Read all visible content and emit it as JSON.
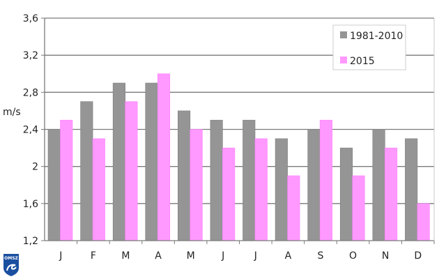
{
  "chart_data": {
    "type": "bar",
    "title": "",
    "xlabel": "",
    "ylabel": "m/s",
    "ylim": [
      1.2,
      3.6
    ],
    "yticks": [
      "1,2",
      "1,6",
      "2",
      "2,4",
      "2,8",
      "3,2",
      "3,6"
    ],
    "ytick_values": [
      1.2,
      1.6,
      2.0,
      2.4,
      2.8,
      3.2,
      3.6
    ],
    "grid": true,
    "legend_position": "top-right",
    "categories": [
      "J",
      "F",
      "M",
      "A",
      "M",
      "J",
      "J",
      "A",
      "S",
      "O",
      "N",
      "D"
    ],
    "series": [
      {
        "name": "1981-2010",
        "color": "#959595",
        "values": [
          2.4,
          2.7,
          2.9,
          2.9,
          2.6,
          2.5,
          2.5,
          2.3,
          2.4,
          2.2,
          2.4,
          2.3
        ]
      },
      {
        "name": "2015",
        "color": "#ff99ff",
        "values": [
          2.5,
          2.3,
          2.7,
          3.0,
          2.4,
          2.2,
          2.3,
          1.9,
          2.5,
          1.9,
          2.2,
          1.6
        ]
      }
    ]
  },
  "logo": {
    "text": "OMSZ"
  }
}
